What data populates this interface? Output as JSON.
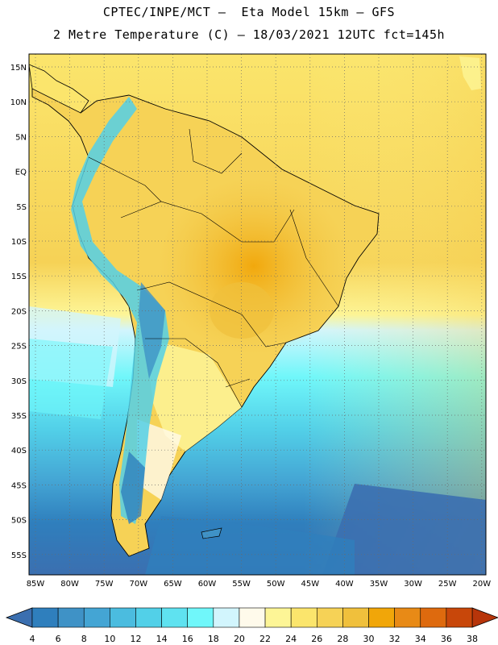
{
  "header": {
    "line1": "CPTEC/INPE/MCT –  Eta Model 15km – GFS",
    "line2": "2 Metre Temperature (C) – 18/03/2021 12UTC fct=145h"
  },
  "lat_labels": [
    "15N",
    "10N",
    "5N",
    "EQ",
    "5S",
    "10S",
    "15S",
    "20S",
    "25S",
    "30S",
    "35S",
    "40S",
    "45S",
    "50S",
    "55S"
  ],
  "lon_labels": [
    "85W",
    "80W",
    "75W",
    "70W",
    "65W",
    "60W",
    "55W",
    "50W",
    "45W",
    "40W",
    "35W",
    "30W",
    "25W",
    "20W"
  ],
  "colorbar": {
    "labels": [
      "4",
      "6",
      "8",
      "10",
      "12",
      "14",
      "16",
      "18",
      "20",
      "22",
      "24",
      "26",
      "28",
      "30",
      "32",
      "34",
      "36",
      "38"
    ],
    "colors": [
      "#3b6fb0",
      "#2f7fbd",
      "#3f92c6",
      "#44a5d4",
      "#4bbcdf",
      "#52d0e8",
      "#5fe2f0",
      "#70f7fa",
      "#d2f5fd",
      "#fffaeb",
      "#fdf596",
      "#fbe56c",
      "#f6d256",
      "#f0c03c",
      "#f1a609",
      "#e88a16",
      "#de6a0e",
      "#c8470a",
      "#b7350a"
    ]
  }
}
